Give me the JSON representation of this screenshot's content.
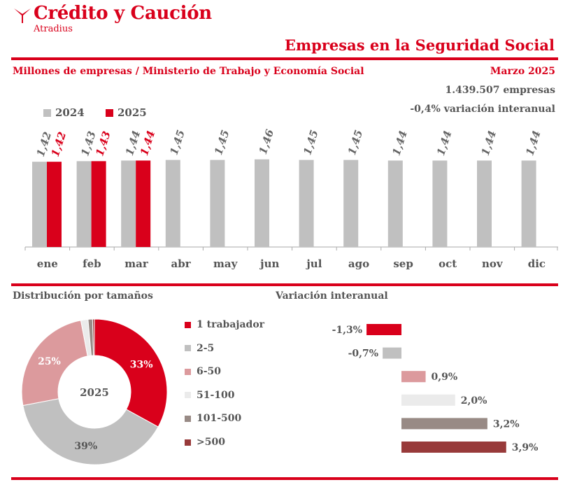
{
  "brand": {
    "name": "Crédito y Caución",
    "sub": "Atradius",
    "color": "#d9001b"
  },
  "report": {
    "title": "Empresas en la Seguridad Social",
    "subtitle": "Millones de empresas / Ministerio de Trabajo y Economía Social",
    "period": "Marzo 2025",
    "total": "1.439.507 empresas",
    "variation": "-0,4% variación interanual"
  },
  "sections": {
    "distribution": "Distribución por tamaños",
    "variation": "Variación interanual"
  },
  "colors": {
    "bar2024": "#c0c0c0",
    "bar2025": "#d9001b",
    "axis": "#aaaaaa"
  },
  "chart_data": [
    {
      "type": "bar",
      "categories": [
        "ene",
        "feb",
        "mar",
        "abr",
        "may",
        "jun",
        "jul",
        "ago",
        "sep",
        "oct",
        "nov",
        "dic"
      ],
      "series": [
        {
          "name": "2024",
          "values": [
            1.42,
            1.43,
            1.44,
            1.45,
            1.45,
            1.46,
            1.45,
            1.45,
            1.44,
            1.44,
            1.44,
            1.44
          ],
          "labels": [
            "1,42",
            "1,43",
            "1,44",
            "1,45",
            "1,45",
            "1,46",
            "1,45",
            "1,45",
            "1,44",
            "1,44",
            "1,44",
            "1,44"
          ],
          "color": "#c0c0c0"
        },
        {
          "name": "2025",
          "values": [
            1.42,
            1.43,
            1.44,
            null,
            null,
            null,
            null,
            null,
            null,
            null,
            null,
            null
          ],
          "labels": [
            "1,42",
            "1,43",
            "1,44",
            "",
            "",
            "",
            "",
            "",
            "",
            "",
            "",
            ""
          ],
          "color": "#d9001b"
        }
      ],
      "ylim": [
        0,
        1.6
      ],
      "grid": false,
      "legend": "top-left"
    },
    {
      "type": "pie",
      "center_label": "2025",
      "slices": [
        {
          "name": "1 trabajador",
          "value": 33,
          "label": "33%",
          "color": "#d9001b"
        },
        {
          "name": "2-5",
          "value": 39,
          "label": "39%",
          "color": "#c0c0c0"
        },
        {
          "name": "6-50",
          "value": 25,
          "label": "25%",
          "color": "#dc9a9d"
        },
        {
          "name": "51-100",
          "value": 1.6,
          "label": "",
          "color": "#ebebeb"
        },
        {
          "name": "101-500",
          "value": 1.0,
          "label": "",
          "color": "#988a85"
        },
        {
          "name": ">500",
          "value": 0.4,
          "label": "",
          "color": "#983a3a"
        }
      ]
    },
    {
      "type": "bar",
      "orientation": "horizontal",
      "categories": [
        "1 trabajador",
        "2-5",
        "6-50",
        "51-100",
        "101-500",
        ">500"
      ],
      "values": [
        -1.3,
        -0.7,
        0.9,
        2.0,
        3.2,
        3.9
      ],
      "labels": [
        "-1,3%",
        "-0,7%",
        "0,9%",
        "2,0%",
        "3,2%",
        "3,9%"
      ],
      "colors": [
        "#d9001b",
        "#c0c0c0",
        "#dc9a9d",
        "#ebebeb",
        "#988a85",
        "#983a3a"
      ],
      "xlim": [
        -1.3,
        3.9
      ]
    }
  ]
}
